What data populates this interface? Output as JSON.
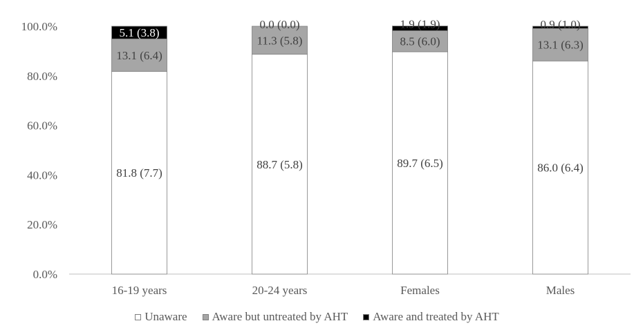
{
  "chart_data": {
    "type": "bar",
    "stacked": true,
    "categories": [
      "16-19 years",
      "20-24 years",
      "Females",
      "Males"
    ],
    "series": [
      {
        "name": "Unaware",
        "color": "#ffffff",
        "values": [
          81.8,
          88.7,
          89.7,
          86.0
        ],
        "labels": [
          "81.8 (7.7)",
          "88.7 (5.8)",
          "89.7 (6.5)",
          "86.0 (6.4)"
        ]
      },
      {
        "name": "Aware but untreated by AHT",
        "color": "#a6a6a6",
        "values": [
          13.1,
          11.3,
          8.5,
          13.1
        ],
        "labels": [
          "13.1 (6.4)",
          "11.3 (5.8)",
          "8.5 (6.0)",
          "13.1 (6.3)"
        ]
      },
      {
        "name": "Aware and treated by AHT",
        "color": "#000000",
        "values": [
          5.1,
          0.0,
          1.9,
          0.9
        ],
        "labels": [
          "5.1 (3.8)",
          "0.0 (0.0)",
          "1.9 (1.9)",
          "0.9 (1.0)"
        ]
      }
    ],
    "yticks": [
      "0.0%",
      "20.0%",
      "40.0%",
      "60.0%",
      "80.0%",
      "100.0%"
    ],
    "ylim": [
      0,
      100
    ],
    "grid": false,
    "legend_position": "bottom"
  }
}
